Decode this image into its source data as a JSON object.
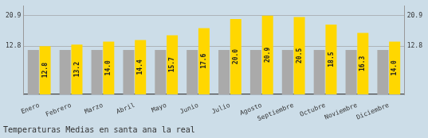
{
  "chart_data": {
    "type": "bar",
    "title": "Temperaturas Medias en santa ana la real",
    "categories": [
      "Enero",
      "Febrero",
      "Marzo",
      "Abril",
      "Mayo",
      "Junio",
      "Julio",
      "Agosto",
      "Septiembre",
      "Octubre",
      "Noviembre",
      "Diciembre"
    ],
    "series": [
      {
        "color": "#AAAAAA",
        "values": [
          11.8,
          11.8,
          11.8,
          11.8,
          11.8,
          11.8,
          11.8,
          11.8,
          11.8,
          11.8,
          11.8,
          11.8
        ]
      },
      {
        "color": "#FFD700",
        "values": [
          12.8,
          13.2,
          14.0,
          14.4,
          15.7,
          17.6,
          20.0,
          20.9,
          20.5,
          18.5,
          16.3,
          14.0
        ],
        "value_labels": [
          "12.8",
          "13.2",
          "14.0",
          "14.4",
          "15.7",
          "17.6",
          "20.0",
          "20.9",
          "20.5",
          "18.5",
          "16.3",
          "14.0"
        ],
        "data_labels": true
      }
    ],
    "ylim": [
      0,
      23.408
    ],
    "yticks": [
      12.8,
      20.9
    ],
    "y2lim": [
      0,
      23.408
    ],
    "y2ticks": [
      12.8,
      20.9
    ],
    "grid": true
  }
}
